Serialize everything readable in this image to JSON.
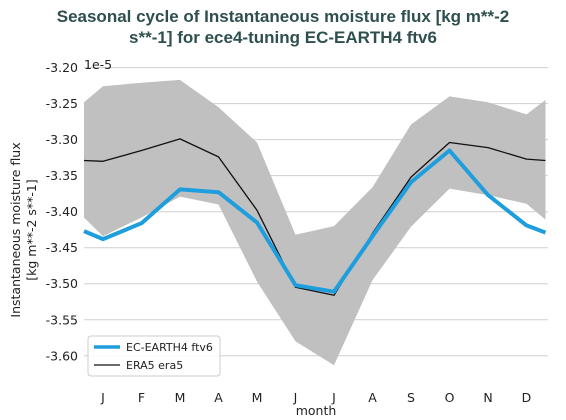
{
  "chart_data": {
    "type": "line",
    "title_lines": [
      "Seasonal cycle of Instantaneous moisture flux [kg m**-2",
      "s**-1] for ece4-tuning EC-EARTH4 ftv6"
    ],
    "xlabel": "month",
    "ylabel_lines": [
      "Instantaneous moisture flux",
      "[kg m**-2 s**-1]"
    ],
    "y_offset_label": "1e-5",
    "categories": [
      "J",
      "F",
      "M",
      "A",
      "M",
      "J",
      "J",
      "A",
      "S",
      "O",
      "N",
      "D"
    ],
    "yticks": [
      "-3.20",
      "-3.25",
      "-3.30",
      "-3.35",
      "-3.40",
      "-3.45",
      "-3.50",
      "-3.55",
      "-3.60"
    ],
    "ylim": [
      -3.635,
      -3.195
    ],
    "grid": "horizontal",
    "legend_position": "bottom-left",
    "series": [
      {
        "name": "EC-EARTH4 ftv6",
        "color": "#1f9ede",
        "values": [
          -3.438,
          -3.416,
          -3.369,
          -3.373,
          -3.415,
          -3.502,
          -3.511,
          -3.434,
          -3.359,
          -3.315,
          -3.377,
          -3.419
        ],
        "edge_values": [
          -3.427,
          -3.429
        ]
      },
      {
        "name": "ERA5 era5",
        "color": "#111111",
        "values": [
          -3.33,
          -3.315,
          -3.299,
          -3.324,
          -3.398,
          -3.505,
          -3.516,
          -3.43,
          -3.352,
          -3.304,
          -3.311,
          -3.327
        ],
        "edge_values": [
          -3.329,
          -3.329
        ]
      }
    ],
    "range_band": {
      "color": "#c0c0c0",
      "upper": [
        -3.226,
        -3.221,
        -3.217,
        -3.255,
        -3.304,
        -3.432,
        -3.42,
        -3.366,
        -3.279,
        -3.24,
        -3.248,
        -3.265
      ],
      "lower": [
        -3.434,
        -3.408,
        -3.379,
        -3.39,
        -3.497,
        -3.58,
        -3.613,
        -3.495,
        -3.421,
        -3.368,
        -3.377,
        -3.389
      ],
      "upper_edge": [
        -3.248,
        -3.245
      ],
      "lower_edge": [
        -3.408,
        -3.411
      ]
    }
  }
}
